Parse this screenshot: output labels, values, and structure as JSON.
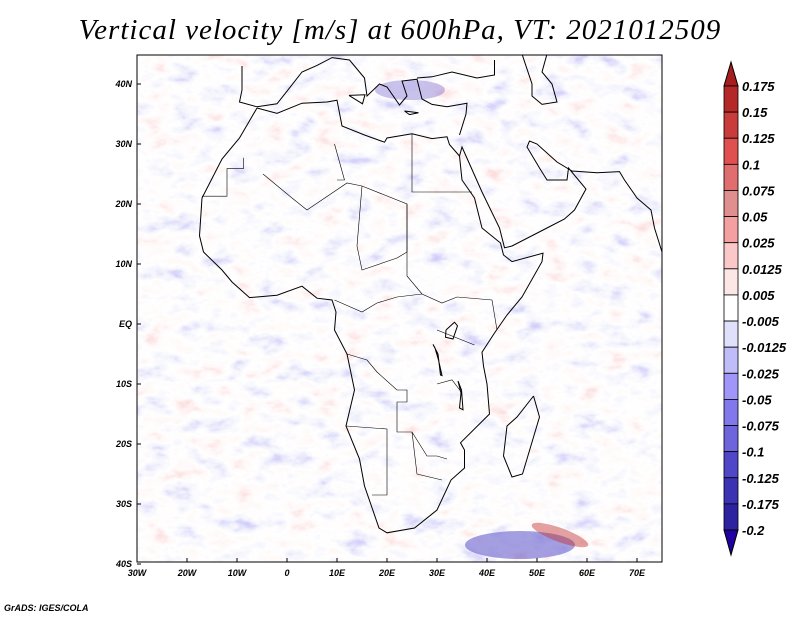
{
  "title": "Vertical velocity [m/s] at 600hPa, VT: 2021012509",
  "credit": "GrADS: IGES/COLA",
  "map": {
    "variable": "Vertical velocity",
    "units": "m/s",
    "level": "600hPa",
    "valid_time": "2021012509",
    "lon_range": [
      -30,
      75
    ],
    "lat_range": [
      -40,
      45
    ],
    "lat_labels": [
      {
        "lat": 40,
        "label": "40N"
      },
      {
        "lat": 30,
        "label": "30N"
      },
      {
        "lat": 20,
        "label": "20N"
      },
      {
        "lat": 10,
        "label": "10N"
      },
      {
        "lat": 0,
        "label": "EQ"
      },
      {
        "lat": -10,
        "label": "10S"
      },
      {
        "lat": -20,
        "label": "20S"
      },
      {
        "lat": -30,
        "label": "30S"
      },
      {
        "lat": -40,
        "label": "40S"
      }
    ],
    "lon_labels": [
      {
        "lon": -30,
        "label": "30W"
      },
      {
        "lon": -20,
        "label": "20W"
      },
      {
        "lon": -10,
        "label": "10W"
      },
      {
        "lon": 0,
        "label": "0"
      },
      {
        "lon": 10,
        "label": "10E"
      },
      {
        "lon": 20,
        "label": "20E"
      },
      {
        "lon": 30,
        "label": "30E"
      },
      {
        "lon": 40,
        "label": "40E"
      },
      {
        "lon": 50,
        "label": "50E"
      },
      {
        "lon": 60,
        "label": "60E"
      },
      {
        "lon": 70,
        "label": "70E"
      }
    ]
  },
  "colorbar": {
    "labels": [
      "0.175",
      "0.15",
      "0.125",
      "0.1",
      "0.075",
      "0.05",
      "0.025",
      "0.0125",
      "0.005",
      "-0.005",
      "-0.0125",
      "-0.025",
      "-0.05",
      "-0.075",
      "-0.1",
      "-0.125",
      "-0.175",
      "-0.2"
    ],
    "top_arrow_color": "#a81e1e",
    "colors": [
      "#b42828",
      "#c83c3c",
      "#e05050",
      "#e06e6e",
      "#e08e8e",
      "#f5a0a0",
      "#fac8c8",
      "#fde6e6",
      "#ffffff",
      "#e0e0fa",
      "#c0bcfa",
      "#a096fa",
      "#8278eb",
      "#6e64dc",
      "#5046c8",
      "#3c32b4",
      "#2d23a0"
    ],
    "bottom_arrow_color": "#2000a0"
  }
}
